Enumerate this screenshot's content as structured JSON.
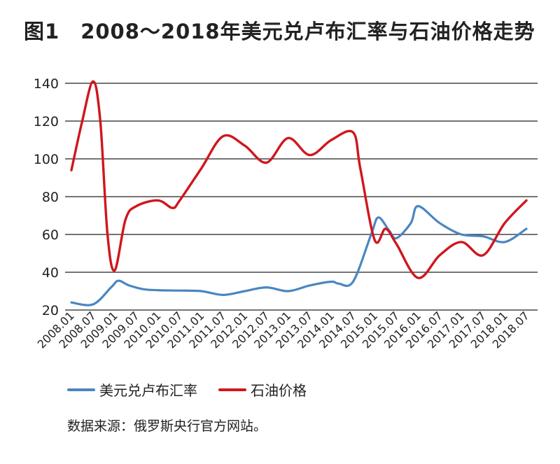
{
  "title": {
    "figure_no": "图1",
    "text": "2008～2018年美元兑卢布汇率与石油价格走势"
  },
  "source": "数据来源：俄罗斯央行官方网站。",
  "colors": {
    "usd_rub": "#4a86c0",
    "oil": "#d0161d",
    "grid": "#222222"
  },
  "chart_data": {
    "type": "line",
    "title": "2008～2018年美元兑卢布汇率与石油价格走势",
    "xlabel": "",
    "ylabel": "",
    "ylim": [
      20,
      140
    ],
    "yticks": [
      20,
      40,
      60,
      80,
      100,
      120,
      140
    ],
    "grid": true,
    "legend_position": "bottom-left",
    "x_ticks": [
      "2008.01",
      "2008.07",
      "2009.01",
      "2009.07",
      "2010.01",
      "2010.07",
      "2011.01",
      "2011.07",
      "2012.01",
      "2012.07",
      "2013.01",
      "2013.07",
      "2014.01",
      "2014.07",
      "2015.01",
      "2015.07",
      "2016.01",
      "2016.07",
      "2017.01",
      "2017.07",
      "2018.01",
      "2018.07"
    ],
    "x_range": [
      "2008.01",
      "2018.07"
    ],
    "series": [
      {
        "name": "美元兑卢布汇率",
        "color": "#4a86c0",
        "points": [
          [
            "2008.01",
            24
          ],
          [
            "2008.07",
            23
          ],
          [
            "2008.12",
            32
          ],
          [
            "2009.02",
            35.5
          ],
          [
            "2009.05",
            33
          ],
          [
            "2009.09",
            31
          ],
          [
            "2010.01",
            30.5
          ],
          [
            "2010.07",
            30.3
          ],
          [
            "2011.01",
            30
          ],
          [
            "2011.07",
            28
          ],
          [
            "2012.01",
            30
          ],
          [
            "2012.07",
            32
          ],
          [
            "2013.01",
            30
          ],
          [
            "2013.07",
            33
          ],
          [
            "2014.01",
            35
          ],
          [
            "2014.03",
            34
          ],
          [
            "2014.07",
            35
          ],
          [
            "2014.12",
            60
          ],
          [
            "2015.02",
            69
          ],
          [
            "2015.05",
            62
          ],
          [
            "2015.07",
            58
          ],
          [
            "2015.11",
            66
          ],
          [
            "2016.01",
            75
          ],
          [
            "2016.07",
            66
          ],
          [
            "2017.01",
            60
          ],
          [
            "2017.07",
            59
          ],
          [
            "2018.01",
            56
          ],
          [
            "2018.07",
            63
          ]
        ]
      },
      {
        "name": "石油价格",
        "color": "#d0161d",
        "points": [
          [
            "2008.01",
            94
          ],
          [
            "2008.04",
            120
          ],
          [
            "2008.07",
            141
          ],
          [
            "2008.09",
            120
          ],
          [
            "2008.11",
            60
          ],
          [
            "2009.01",
            41
          ],
          [
            "2009.04",
            68
          ],
          [
            "2009.07",
            75
          ],
          [
            "2010.01",
            78
          ],
          [
            "2010.05",
            74
          ],
          [
            "2010.07",
            78
          ],
          [
            "2011.01",
            95
          ],
          [
            "2011.07",
            112
          ],
          [
            "2012.01",
            107
          ],
          [
            "2012.07",
            98
          ],
          [
            "2013.01",
            111
          ],
          [
            "2013.07",
            102
          ],
          [
            "2014.01",
            110
          ],
          [
            "2014.07",
            114
          ],
          [
            "2014.09",
            95
          ],
          [
            "2015.01",
            57
          ],
          [
            "2015.04",
            63
          ],
          [
            "2015.07",
            55
          ],
          [
            "2016.01",
            37
          ],
          [
            "2016.07",
            49
          ],
          [
            "2017.01",
            56
          ],
          [
            "2017.07",
            49
          ],
          [
            "2018.01",
            66
          ],
          [
            "2018.07",
            78
          ]
        ]
      }
    ]
  }
}
